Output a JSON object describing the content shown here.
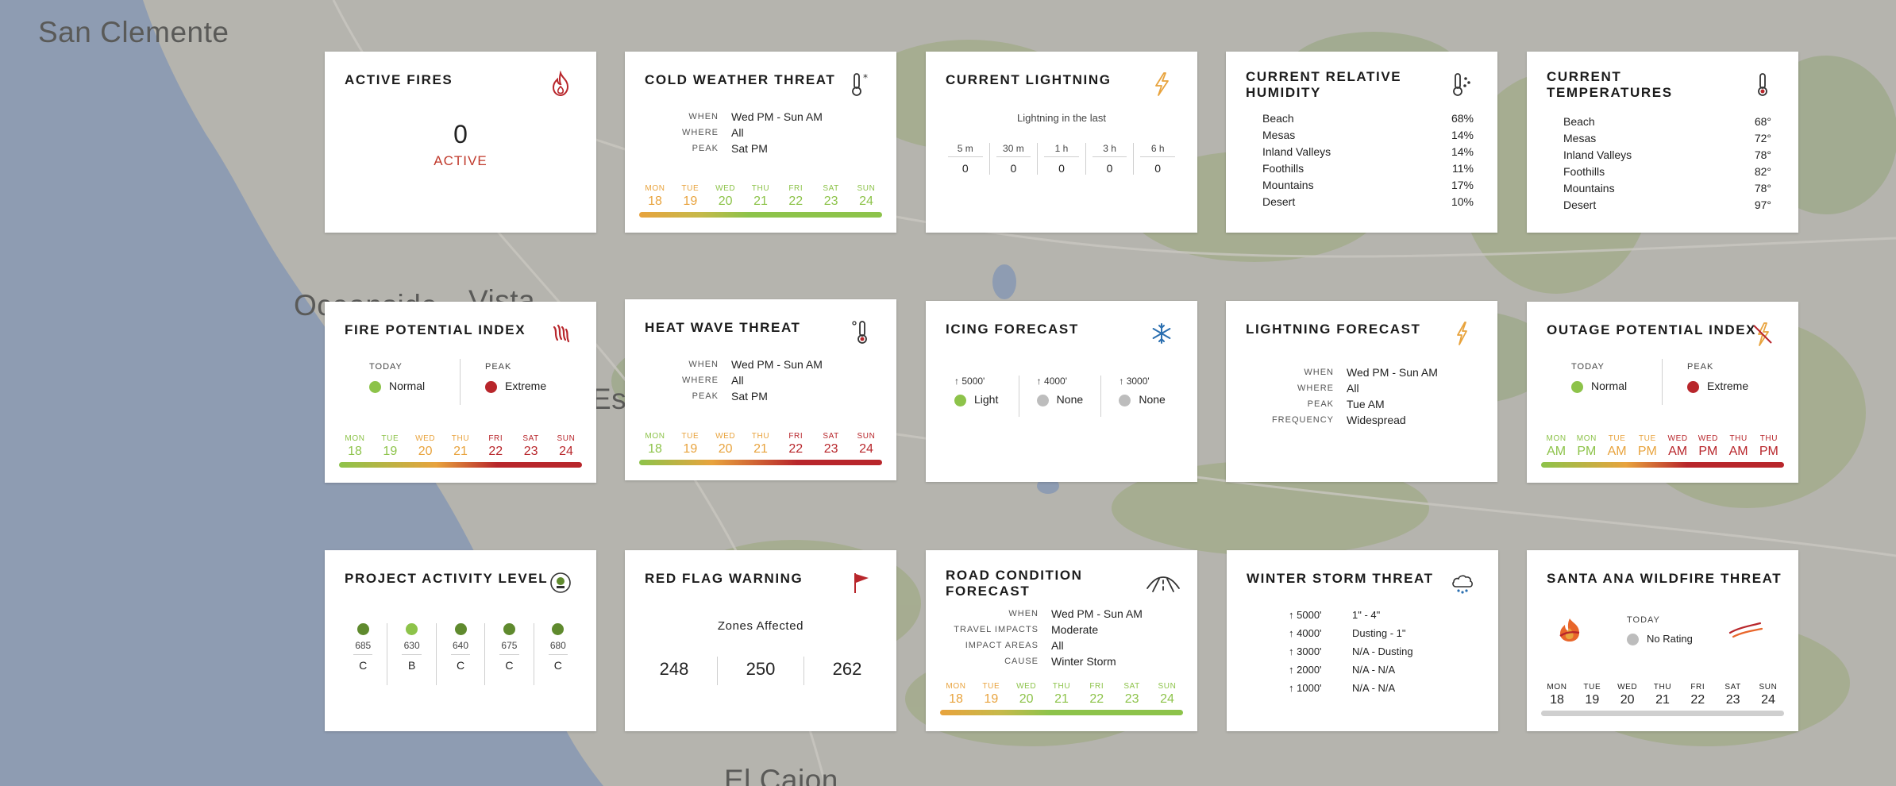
{
  "map": {
    "labels": [
      "San Clemente",
      "Oceanside",
      "Vista",
      "Escondido",
      "El Cajon"
    ]
  },
  "colors": {
    "red": "#b8262b",
    "dark_red": "#b22a30",
    "orange": "#e8a33d",
    "green": "#8dc34a",
    "olive": "#5f8a2e",
    "gray": "#bdbdbd"
  },
  "cards": {
    "active_fires": {
      "title": "ACTIVE FIRES",
      "icon": "fire-icon",
      "count": "0",
      "status": "ACTIVE"
    },
    "cold_weather": {
      "title": "COLD WEATHER THREAT",
      "icon": "thermometer-snow-icon",
      "rows": [
        {
          "k": "WHEN",
          "v": "Wed PM - Sun AM"
        },
        {
          "k": "WHERE",
          "v": "All"
        },
        {
          "k": "PEAK",
          "v": "Sat PM"
        }
      ],
      "days": [
        {
          "n": "MON",
          "d": "18",
          "c": "#e8a33d"
        },
        {
          "n": "TUE",
          "d": "19",
          "c": "#e8a33d"
        },
        {
          "n": "WED",
          "d": "20",
          "c": "#8dc34a"
        },
        {
          "n": "THU",
          "d": "21",
          "c": "#8dc34a"
        },
        {
          "n": "FRI",
          "d": "22",
          "c": "#8dc34a"
        },
        {
          "n": "SAT",
          "d": "23",
          "c": "#8dc34a"
        },
        {
          "n": "SUN",
          "d": "24",
          "c": "#8dc34a"
        }
      ]
    },
    "current_lightning": {
      "title": "CURRENT LIGHTNING",
      "icon": "lightning-icon",
      "subtitle": "Lightning in the last",
      "cols": [
        {
          "h": "5 m",
          "v": "0"
        },
        {
          "h": "30 m",
          "v": "0"
        },
        {
          "h": "1 h",
          "v": "0"
        },
        {
          "h": "3 h",
          "v": "0"
        },
        {
          "h": "6 h",
          "v": "0"
        }
      ]
    },
    "humidity": {
      "title": "CURRENT RELATIVE HUMIDITY",
      "icon": "humidity-thermometer-icon",
      "rows": [
        {
          "k": "Beach",
          "v": "68%"
        },
        {
          "k": "Mesas",
          "v": "14%"
        },
        {
          "k": "Inland Valleys",
          "v": "14%"
        },
        {
          "k": "Foothills",
          "v": "11%"
        },
        {
          "k": "Mountains",
          "v": "17%"
        },
        {
          "k": "Desert",
          "v": "10%"
        }
      ]
    },
    "temperatures": {
      "title": "CURRENT TEMPERATURES",
      "icon": "thermometer-icon",
      "rows": [
        {
          "k": "Beach",
          "v": "68°"
        },
        {
          "k": "Mesas",
          "v": "72°"
        },
        {
          "k": "Inland Valleys",
          "v": "78°"
        },
        {
          "k": "Foothills",
          "v": "82°"
        },
        {
          "k": "Mountains",
          "v": "78°"
        },
        {
          "k": "Desert",
          "v": "97°"
        }
      ]
    },
    "fire_potential": {
      "title": "FIRE POTENTIAL INDEX",
      "icon": "fire-lines-icon",
      "today_label": "TODAY",
      "today_value": "Normal",
      "peak_label": "PEAK",
      "peak_value": "Extreme",
      "days": [
        {
          "n": "MON",
          "d": "18",
          "c": "#8dc34a"
        },
        {
          "n": "TUE",
          "d": "19",
          "c": "#8dc34a"
        },
        {
          "n": "WED",
          "d": "20",
          "c": "#e8a33d"
        },
        {
          "n": "THU",
          "d": "21",
          "c": "#e8a33d"
        },
        {
          "n": "FRI",
          "d": "22",
          "c": "#b8262b"
        },
        {
          "n": "SAT",
          "d": "23",
          "c": "#b8262b"
        },
        {
          "n": "SUN",
          "d": "24",
          "c": "#b8262b"
        }
      ]
    },
    "heat_wave": {
      "title": "HEAT WAVE THREAT",
      "icon": "thermometer-heat-icon",
      "rows": [
        {
          "k": "WHEN",
          "v": "Wed PM - Sun AM"
        },
        {
          "k": "WHERE",
          "v": "All"
        },
        {
          "k": "PEAK",
          "v": "Sat PM"
        }
      ],
      "days": [
        {
          "n": "MON",
          "d": "18",
          "c": "#8dc34a"
        },
        {
          "n": "TUE",
          "d": "19",
          "c": "#e8a33d"
        },
        {
          "n": "WED",
          "d": "20",
          "c": "#e8a33d"
        },
        {
          "n": "THU",
          "d": "21",
          "c": "#e8a33d"
        },
        {
          "n": "FRI",
          "d": "22",
          "c": "#b8262b"
        },
        {
          "n": "SAT",
          "d": "23",
          "c": "#b8262b"
        },
        {
          "n": "SUN",
          "d": "24",
          "c": "#b8262b"
        }
      ]
    },
    "icing": {
      "title": "ICING FORECAST",
      "icon": "snowflake-icon",
      "cols": [
        {
          "h": "5000'",
          "v": "Light",
          "c": "#8dc34a"
        },
        {
          "h": "4000'",
          "v": "None",
          "c": "#bdbdbd"
        },
        {
          "h": "3000'",
          "v": "None",
          "c": "#bdbdbd"
        }
      ]
    },
    "lightning_forecast": {
      "title": "LIGHTNING FORECAST",
      "icon": "lightning-bolt-icon",
      "rows": [
        {
          "k": "WHEN",
          "v": "Wed PM - Sun AM"
        },
        {
          "k": "WHERE",
          "v": "All"
        },
        {
          "k": "PEAK",
          "v": "Tue AM"
        },
        {
          "k": "FREQUENCY",
          "v": "Widespread"
        }
      ]
    },
    "outage": {
      "title": "OUTAGE POTENTIAL INDEX",
      "icon": "outage-icon",
      "today_label": "TODAY",
      "today_value": "Normal",
      "peak_label": "PEAK",
      "peak_value": "Extreme",
      "days": [
        {
          "n": "MON",
          "d": "AM",
          "c": "#8dc34a"
        },
        {
          "n": "MON",
          "d": "PM",
          "c": "#8dc34a"
        },
        {
          "n": "TUE",
          "d": "AM",
          "c": "#e8a33d"
        },
        {
          "n": "TUE",
          "d": "PM",
          "c": "#e8a33d"
        },
        {
          "n": "WED",
          "d": "AM",
          "c": "#b8262b"
        },
        {
          "n": "WED",
          "d": "PM",
          "c": "#b8262b"
        },
        {
          "n": "THU",
          "d": "AM",
          "c": "#b8262b"
        },
        {
          "n": "THU",
          "d": "PM",
          "c": "#b8262b"
        }
      ]
    },
    "project_activity": {
      "title": "PROJECT ACTIVITY LEVEL",
      "icon": "pal-badge-icon",
      "cols": [
        {
          "n": "685",
          "l": "C",
          "c": "#5f8a2e"
        },
        {
          "n": "630",
          "l": "B",
          "c": "#8dc34a"
        },
        {
          "n": "640",
          "l": "C",
          "c": "#5f8a2e"
        },
        {
          "n": "675",
          "l": "C",
          "c": "#5f8a2e"
        },
        {
          "n": "680",
          "l": "C",
          "c": "#5f8a2e"
        }
      ]
    },
    "red_flag": {
      "title": "RED FLAG WARNING",
      "icon": "flag-icon",
      "subtitle": "Zones Affected",
      "values": [
        "248",
        "250",
        "262"
      ]
    },
    "road_condition": {
      "title": "ROAD CONDITION FORECAST",
      "icon": "road-icon",
      "rows": [
        {
          "k": "WHEN",
          "v": "Wed PM - Sun AM"
        },
        {
          "k": "TRAVEL IMPACTS",
          "v": "Moderate"
        },
        {
          "k": "IMPACT AREAS",
          "v": "All"
        },
        {
          "k": "CAUSE",
          "v": "Winter Storm"
        }
      ],
      "days": [
        {
          "n": "MON",
          "d": "18",
          "c": "#e8a33d"
        },
        {
          "n": "TUE",
          "d": "19",
          "c": "#e8a33d"
        },
        {
          "n": "WED",
          "d": "20",
          "c": "#8dc34a"
        },
        {
          "n": "THU",
          "d": "21",
          "c": "#8dc34a"
        },
        {
          "n": "FRI",
          "d": "22",
          "c": "#8dc34a"
        },
        {
          "n": "SAT",
          "d": "23",
          "c": "#8dc34a"
        },
        {
          "n": "SUN",
          "d": "24",
          "c": "#8dc34a"
        }
      ]
    },
    "winter_storm": {
      "title": "WINTER STORM THREAT",
      "icon": "cloud-snow-icon",
      "rows": [
        {
          "k": "5000'",
          "v": "1\" - 4\""
        },
        {
          "k": "4000'",
          "v": "Dusting - 1\""
        },
        {
          "k": "3000'",
          "v": "N/A - Dusting"
        },
        {
          "k": "2000'",
          "v": "N/A - N/A"
        },
        {
          "k": "1000'",
          "v": "N/A - N/A"
        }
      ]
    },
    "santa_ana": {
      "title": "SANTA ANA WILDFIRE THREAT",
      "icon": "santa-ana-icon",
      "today_label": "TODAY",
      "today_value": "No Rating",
      "days": [
        {
          "n": "MON",
          "d": "18"
        },
        {
          "n": "TUE",
          "d": "19"
        },
        {
          "n": "WED",
          "d": "20"
        },
        {
          "n": "THU",
          "d": "21"
        },
        {
          "n": "FRI",
          "d": "22"
        },
        {
          "n": "SAT",
          "d": "23"
        },
        {
          "n": "SUN",
          "d": "24"
        }
      ]
    }
  }
}
